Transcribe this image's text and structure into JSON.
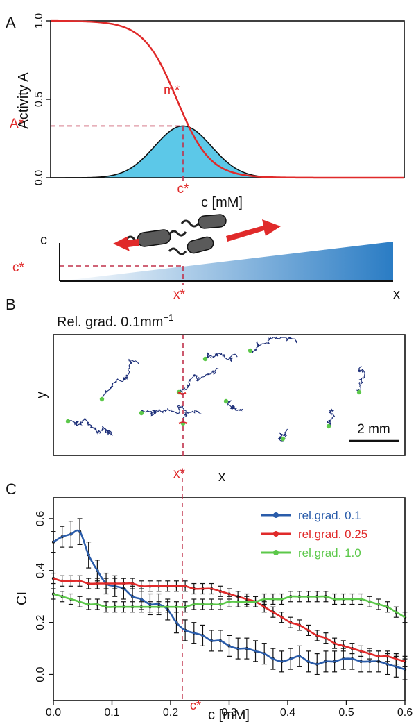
{
  "panels": {
    "a": "A",
    "b": "B",
    "c": "C"
  },
  "colors": {
    "red": "#e02a2a",
    "fill_cyan": "#5cc8e8",
    "navy": "#1c2e78",
    "green": "#5cc84a",
    "blue": "#2a5caa",
    "gradient_dark": "#2a7cc4",
    "cell_body": "#5a5a5a"
  },
  "chart_data": [
    {
      "type": "line",
      "panel": "A",
      "ylabel": "Activity A",
      "xlabel": "c [mM]",
      "ylim": [
        0,
        1
      ],
      "yticks": [
        "0.0",
        "0.5",
        "1.0"
      ],
      "curve_activity": {
        "shape": "decreasing sigmoid",
        "color": "#e02a2a",
        "start": 1.0,
        "end": 0.0
      },
      "curve_sensitivity": {
        "shape": "bell",
        "fill": "#5cc8e8",
        "peak": 0.33
      },
      "annotations": {
        "m_star": "m*",
        "a_star": "A*",
        "c_star": "c*",
        "a_star_value": 0.33
      }
    },
    {
      "type": "diagram",
      "panel": "A-inset",
      "ylabel": "c",
      "xlabel": "x",
      "c_star": "c*",
      "x_star": "x*",
      "gradient": "linear increasing in x"
    },
    {
      "type": "scatter",
      "panel": "B",
      "title": "Rel. grad. 0.1mm",
      "title_sup": "−1",
      "xlabel": "x",
      "ylabel": "y",
      "scalebar": "2 mm",
      "x_star": "x*",
      "trajectory_color": "#1c2e78",
      "start_marker_color": "#5cc84a"
    },
    {
      "type": "line",
      "panel": "C",
      "xlabel": "c [mM]",
      "ylabel": "CI",
      "xlim": [
        0.0,
        0.6
      ],
      "ylim": [
        -0.1,
        0.68
      ],
      "xticks": [
        "0.0",
        "0.1",
        "0.2",
        "0.3",
        "0.4",
        "0.5",
        "0.6"
      ],
      "yticks": [
        "0.0",
        "0.2",
        "0.4",
        "0.6"
      ],
      "c_star": "c*",
      "c_star_value": 0.22,
      "legend_position": "top-right",
      "series": [
        {
          "name": "rel.grad. 0.1",
          "color": "#2a5caa",
          "x": [
            0.0,
            0.015,
            0.03,
            0.045,
            0.06,
            0.075,
            0.09,
            0.105,
            0.12,
            0.135,
            0.15,
            0.165,
            0.18,
            0.195,
            0.21,
            0.225,
            0.24,
            0.255,
            0.27,
            0.285,
            0.3,
            0.315,
            0.33,
            0.345,
            0.36,
            0.375,
            0.39,
            0.405,
            0.42,
            0.435,
            0.45,
            0.465,
            0.48,
            0.495,
            0.51,
            0.525,
            0.54,
            0.555,
            0.57,
            0.585,
            0.6
          ],
          "values": [
            0.51,
            0.53,
            0.54,
            0.55,
            0.46,
            0.4,
            0.35,
            0.34,
            0.33,
            0.3,
            0.29,
            0.27,
            0.27,
            0.25,
            0.2,
            0.17,
            0.16,
            0.15,
            0.13,
            0.13,
            0.11,
            0.1,
            0.1,
            0.09,
            0.08,
            0.06,
            0.05,
            0.06,
            0.07,
            0.05,
            0.04,
            0.05,
            0.05,
            0.06,
            0.06,
            0.05,
            0.05,
            0.05,
            0.04,
            0.03,
            0.02
          ],
          "errors": [
            0.04,
            0.04,
            0.05,
            0.05,
            0.05,
            0.04,
            0.04,
            0.04,
            0.04,
            0.04,
            0.04,
            0.04,
            0.04,
            0.04,
            0.04,
            0.04,
            0.04,
            0.04,
            0.04,
            0.04,
            0.04,
            0.04,
            0.04,
            0.04,
            0.04,
            0.04,
            0.04,
            0.04,
            0.04,
            0.04,
            0.04,
            0.04,
            0.04,
            0.04,
            0.04,
            0.04,
            0.04,
            0.04,
            0.04,
            0.04,
            0.04
          ]
        },
        {
          "name": "rel.grad. 0.25",
          "color": "#e02a2a",
          "x": [
            0.0,
            0.015,
            0.03,
            0.045,
            0.06,
            0.075,
            0.09,
            0.105,
            0.12,
            0.135,
            0.15,
            0.165,
            0.18,
            0.195,
            0.21,
            0.225,
            0.24,
            0.255,
            0.27,
            0.285,
            0.3,
            0.315,
            0.33,
            0.345,
            0.36,
            0.375,
            0.39,
            0.405,
            0.42,
            0.435,
            0.45,
            0.465,
            0.48,
            0.495,
            0.51,
            0.525,
            0.54,
            0.555,
            0.57,
            0.585,
            0.6
          ],
          "values": [
            0.37,
            0.36,
            0.36,
            0.36,
            0.35,
            0.35,
            0.35,
            0.35,
            0.35,
            0.35,
            0.34,
            0.34,
            0.34,
            0.34,
            0.34,
            0.34,
            0.33,
            0.33,
            0.33,
            0.32,
            0.31,
            0.3,
            0.29,
            0.28,
            0.26,
            0.24,
            0.22,
            0.2,
            0.19,
            0.17,
            0.15,
            0.14,
            0.12,
            0.11,
            0.1,
            0.09,
            0.08,
            0.07,
            0.07,
            0.06,
            0.05
          ],
          "errors": [
            0.02,
            0.02,
            0.02,
            0.02,
            0.02,
            0.02,
            0.02,
            0.02,
            0.02,
            0.02,
            0.02,
            0.02,
            0.02,
            0.02,
            0.02,
            0.02,
            0.02,
            0.02,
            0.02,
            0.02,
            0.02,
            0.02,
            0.02,
            0.02,
            0.02,
            0.02,
            0.02,
            0.02,
            0.02,
            0.02,
            0.02,
            0.02,
            0.02,
            0.02,
            0.02,
            0.02,
            0.02,
            0.02,
            0.02,
            0.02,
            0.02
          ]
        },
        {
          "name": "rel.grad. 1.0",
          "color": "#5cc84a",
          "x": [
            0.0,
            0.015,
            0.03,
            0.045,
            0.06,
            0.075,
            0.09,
            0.105,
            0.12,
            0.135,
            0.15,
            0.165,
            0.18,
            0.195,
            0.21,
            0.225,
            0.24,
            0.255,
            0.27,
            0.285,
            0.3,
            0.315,
            0.33,
            0.345,
            0.36,
            0.375,
            0.39,
            0.405,
            0.42,
            0.435,
            0.45,
            0.465,
            0.48,
            0.495,
            0.51,
            0.525,
            0.54,
            0.555,
            0.57,
            0.585,
            0.6
          ],
          "values": [
            0.31,
            0.3,
            0.29,
            0.28,
            0.27,
            0.27,
            0.26,
            0.26,
            0.26,
            0.26,
            0.26,
            0.26,
            0.26,
            0.26,
            0.26,
            0.26,
            0.27,
            0.27,
            0.27,
            0.27,
            0.28,
            0.28,
            0.28,
            0.28,
            0.29,
            0.29,
            0.29,
            0.3,
            0.3,
            0.3,
            0.3,
            0.3,
            0.29,
            0.29,
            0.29,
            0.29,
            0.28,
            0.27,
            0.26,
            0.24,
            0.22
          ],
          "errors": [
            0.02,
            0.02,
            0.02,
            0.02,
            0.02,
            0.02,
            0.02,
            0.02,
            0.02,
            0.02,
            0.02,
            0.02,
            0.02,
            0.02,
            0.02,
            0.02,
            0.02,
            0.02,
            0.02,
            0.02,
            0.02,
            0.02,
            0.02,
            0.02,
            0.02,
            0.02,
            0.02,
            0.02,
            0.02,
            0.02,
            0.02,
            0.02,
            0.02,
            0.02,
            0.02,
            0.02,
            0.02,
            0.02,
            0.02,
            0.02,
            0.02
          ]
        }
      ]
    }
  ]
}
